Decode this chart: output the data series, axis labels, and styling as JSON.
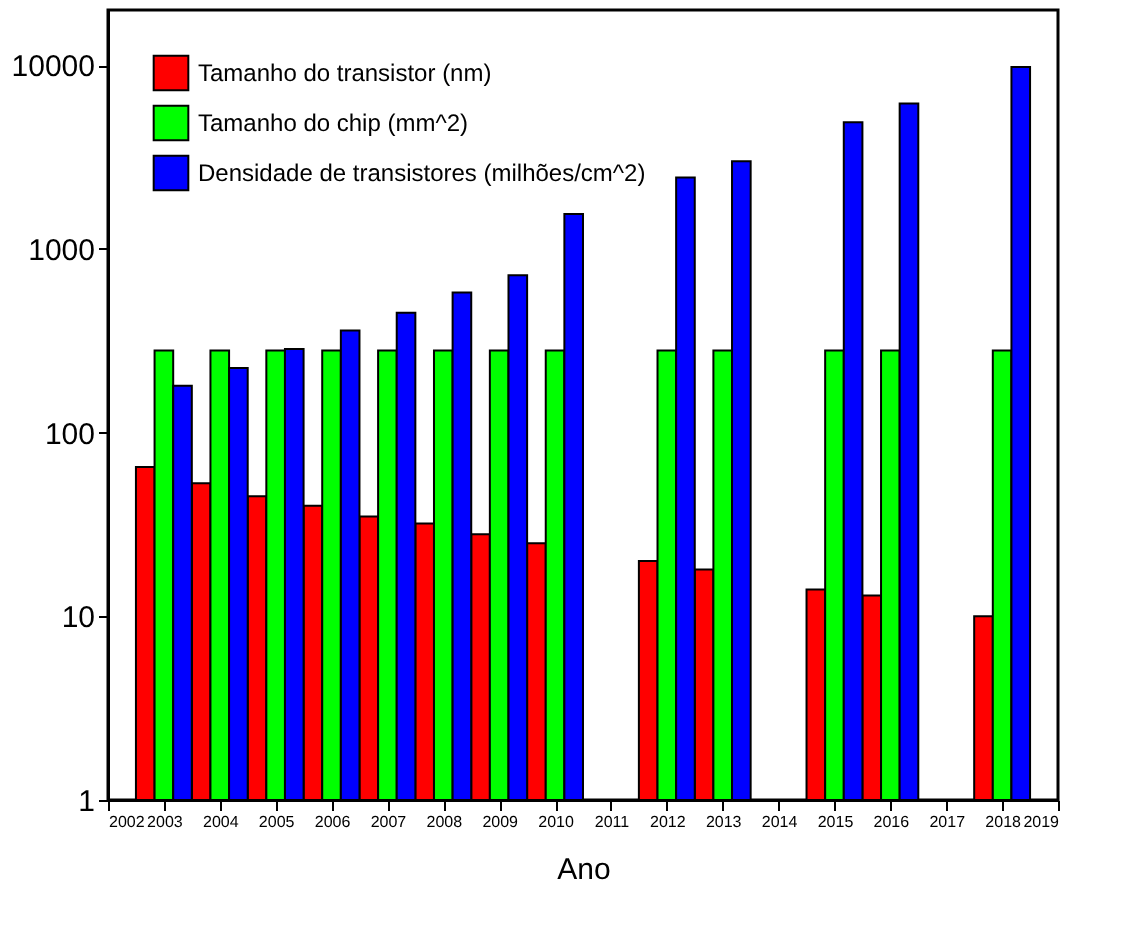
{
  "chart_data": {
    "type": "bar",
    "xlabel": "Ano",
    "x": [
      2003,
      2004,
      2005,
      2006,
      2007,
      2008,
      2009,
      2010,
      2012,
      2013,
      2015,
      2016,
      2018
    ],
    "series": [
      {
        "name": "Tamanho do transistor (nm)",
        "color": "#ff0000",
        "values": [
          65,
          53,
          45,
          40,
          35,
          32,
          28,
          25,
          20,
          18,
          14,
          13,
          10
        ]
      },
      {
        "name": "Tamanho do chip (mm^2)",
        "color": "#00ff00",
        "values": [
          280,
          280,
          280,
          280,
          280,
          280,
          280,
          280,
          280,
          280,
          280,
          280,
          280
        ]
      },
      {
        "name": "Densidade de transistores (milhões/cm^2)",
        "color": "#0000ff",
        "values": [
          180,
          225,
          285,
          360,
          450,
          580,
          720,
          1550,
          2450,
          3000,
          4900,
          6200,
          9800
        ]
      }
    ],
    "log": "y",
    "xlim": [
      2002,
      2019
    ],
    "xticks": [
      2002,
      2003,
      2004,
      2005,
      2006,
      2007,
      2008,
      2009,
      2010,
      2011,
      2012,
      2013,
      2014,
      2015,
      2016,
      2017,
      2018,
      2019
    ],
    "ylim": [
      1,
      20000
    ],
    "yticks": [
      1,
      10,
      100,
      1000,
      10000
    ],
    "grid": false,
    "legend": "top left"
  }
}
